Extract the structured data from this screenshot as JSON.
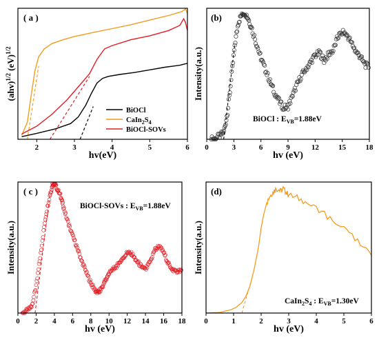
{
  "chart_data": [
    {
      "type": "line",
      "panel_label": "( a )",
      "xlabel": "hv(eV)",
      "ylabel": "(ahv)",
      "ylabel_sup1": "1/2",
      "ylabel_mid": " (eV)",
      "ylabel_sup2": "1/2",
      "xlim": [
        1.5,
        6
      ],
      "ylim": [
        0,
        10
      ],
      "xticks": [
        "2",
        "3",
        "4",
        "5",
        "6"
      ],
      "legend_position": "bottom-right",
      "series": [
        {
          "name": "BiOCl",
          "color": "#000000",
          "x": [
            1.6,
            2.0,
            2.5,
            2.9,
            3.1,
            3.3,
            3.45,
            3.6,
            3.75,
            3.9,
            4.2,
            4.6,
            5.0,
            5.4,
            5.8,
            6.0
          ],
          "y": [
            0.2,
            0.45,
            0.8,
            1.2,
            1.7,
            2.6,
            3.5,
            4.3,
            4.65,
            4.8,
            4.95,
            5.1,
            5.3,
            5.5,
            5.65,
            5.8
          ]
        },
        {
          "name": "CaIn",
          "name_sub1": "2",
          "name_mid": "S",
          "name_sub2": "4",
          "color": "#f39c1e",
          "x": [
            1.6,
            1.75,
            1.85,
            1.95,
            2.05,
            2.2,
            2.4,
            2.7,
            3.0,
            3.5,
            4.0,
            4.5,
            5.0,
            5.5,
            5.85,
            5.95,
            6.0
          ],
          "y": [
            0.3,
            1.3,
            3.3,
            5.2,
            6.3,
            6.9,
            7.3,
            7.6,
            7.85,
            8.15,
            8.45,
            8.75,
            9.1,
            9.45,
            9.75,
            9.95,
            9.6
          ]
        },
        {
          "name": "BiOCl-SOVs",
          "color": "#e31b23",
          "x": [
            1.6,
            2.0,
            2.4,
            2.8,
            3.1,
            3.4,
            3.6,
            3.8,
            4.0,
            4.5,
            5.0,
            5.5,
            5.8,
            5.9,
            5.95,
            6.0
          ],
          "y": [
            0.4,
            1.0,
            1.9,
            3.0,
            4.0,
            5.0,
            6.1,
            6.9,
            7.15,
            7.6,
            7.9,
            8.3,
            8.7,
            9.2,
            8.9,
            8.3
          ]
        }
      ],
      "tangents": [
        {
          "color": "#000000",
          "x": [
            3.15,
            3.5
          ],
          "y": [
            0,
            2.5
          ]
        },
        {
          "color": "#f39c1e",
          "x": [
            1.75,
            2.05
          ],
          "y": [
            0,
            5.6
          ]
        },
        {
          "color": "#e31b23",
          "x": [
            2.35,
            3.4
          ],
          "y": [
            0,
            4.8
          ]
        }
      ]
    },
    {
      "type": "scatter",
      "panel_label": "(b)",
      "xlabel": "hv (eV)",
      "ylabel": "Intensity(a.u.)",
      "annotation": "BiOCl : E",
      "annotation_sub": "VB",
      "annotation_value": "=1.88eV",
      "xlim": [
        0,
        18
      ],
      "ylim": [
        0,
        10
      ],
      "xticks": [
        "0",
        "3",
        "6",
        "9",
        "12",
        "15",
        "18"
      ],
      "color": "#333333",
      "x": [
        0.5,
        1.0,
        1.5,
        1.9,
        2.3,
        2.7,
        3.1,
        3.5,
        3.9,
        4.2,
        4.6,
        5.0,
        5.5,
        6.0,
        6.5,
        7.0,
        7.5,
        8.0,
        8.5,
        9.0,
        9.5,
        10.0,
        10.5,
        11.0,
        11.5,
        12.0,
        12.5,
        13.0,
        13.5,
        14.0,
        14.5,
        15.0,
        15.5,
        16.0,
        16.5,
        17.0,
        17.5,
        18.0
      ],
      "y": [
        0.0,
        0.1,
        0.3,
        0.6,
        2.0,
        4.5,
        7.2,
        8.9,
        9.6,
        9.7,
        9.2,
        8.4,
        7.3,
        6.2,
        5.3,
        4.4,
        3.6,
        2.9,
        2.4,
        2.5,
        3.3,
        4.2,
        4.9,
        5.4,
        5.9,
        6.4,
        6.6,
        6.0,
        6.5,
        6.8,
        7.8,
        8.2,
        8.0,
        7.4,
        6.7,
        6.3,
        5.7,
        5.5
      ]
    },
    {
      "type": "scatter",
      "panel_label": "( c )",
      "xlabel": "hv (eV)",
      "ylabel": "Intensity(a.u.)",
      "annotation": "BiOCl-SOVs : E",
      "annotation_sub": "VB",
      "annotation_value": "=1.88eV",
      "xlim": [
        0,
        18
      ],
      "ylim": [
        0,
        10
      ],
      "xticks": [
        "0",
        "2",
        "4",
        "6",
        "8",
        "10",
        "12",
        "14",
        "16",
        "18"
      ],
      "color": "#e31b23",
      "x": [
        0.5,
        1.0,
        1.5,
        2.0,
        2.5,
        3.0,
        3.5,
        3.8,
        4.0,
        4.3,
        4.7,
        5.0,
        5.5,
        6.0,
        6.5,
        7.0,
        7.5,
        8.0,
        8.5,
        8.8,
        9.2,
        9.6,
        10.0,
        10.5,
        11.0,
        11.5,
        12.0,
        12.5,
        13.0,
        13.5,
        14.0,
        14.5,
        15.0,
        15.5,
        16.0,
        16.5,
        17.0,
        17.5,
        18.0
      ],
      "y": [
        0.0,
        0.2,
        0.5,
        2.0,
        4.6,
        7.2,
        9.0,
        9.8,
        9.9,
        9.5,
        8.9,
        8.1,
        6.9,
        5.9,
        5.0,
        4.0,
        3.1,
        2.3,
        1.7,
        1.5,
        1.9,
        2.5,
        3.0,
        3.4,
        3.7,
        4.2,
        4.6,
        4.5,
        4.0,
        3.6,
        3.3,
        3.9,
        4.8,
        5.1,
        4.6,
        3.8,
        3.3,
        3.2,
        3.2
      ]
    },
    {
      "type": "line",
      "panel_label": "(d)",
      "xlabel": "hv (eV)",
      "ylabel": "Intensity(a.u.)",
      "annotation": "CaIn",
      "annotation_sub1": "2",
      "annotation_mid": "S",
      "annotation_sub2": "4",
      "annotation_tail": " : E",
      "annotation_sub3": "VB",
      "annotation_value": "=1.30eV",
      "xlim": [
        0,
        6
      ],
      "ylim": [
        0,
        10
      ],
      "xticks": [
        "0",
        "1",
        "2",
        "3",
        "4",
        "5",
        "6"
      ],
      "color": "#f39c1e",
      "x": [
        0.0,
        0.5,
        0.9,
        1.1,
        1.3,
        1.45,
        1.6,
        1.75,
        1.9,
        2.0,
        2.1,
        2.2,
        2.3,
        2.4,
        2.5,
        2.6,
        2.7,
        2.8,
        2.9,
        3.0,
        3.3,
        3.6,
        4.0,
        4.4,
        4.8,
        5.2,
        5.6,
        6.0
      ],
      "y": [
        0.0,
        0.05,
        0.25,
        0.45,
        0.8,
        1.3,
        2.1,
        3.4,
        5.0,
        6.5,
        7.6,
        8.4,
        8.9,
        9.1,
        9.4,
        9.5,
        9.3,
        9.5,
        9.2,
        9.0,
        8.8,
        8.5,
        7.9,
        7.4,
        6.8,
        6.1,
        5.3,
        4.4
      ]
    }
  ],
  "d_tangent": {
    "color": "#f39c1e",
    "x": [
      1.3,
      1.7
    ],
    "y": [
      0,
      2.9
    ]
  }
}
